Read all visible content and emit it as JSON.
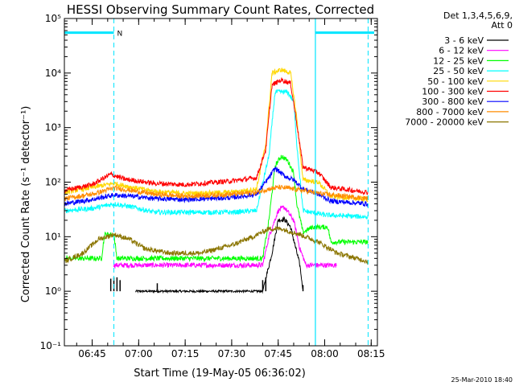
{
  "chart_data": {
    "type": "line",
    "title": "HESSI Observing Summary Count Rates, Corrected",
    "xlabel": "Start Time (19-May-05 06:36:02)",
    "ylabel": "Corrected Count Rate (s⁻¹ detector⁻¹)",
    "y_scale": "log",
    "ylim": [
      0.1,
      100000
    ],
    "xlim": [
      "06:36:02",
      "08:17:00"
    ],
    "x_ticks": [
      "06:45",
      "07:00",
      "07:15",
      "07:30",
      "07:45",
      "08:00",
      "08:15"
    ],
    "y_ticks": [
      "10⁻¹",
      "10⁰",
      "10¹",
      "10²",
      "10³",
      "10⁴",
      "10⁵"
    ],
    "legend_header": [
      "Det 1,3,4,5,6,9,",
      "Att 0"
    ],
    "legend_position": "right",
    "timestamp": "25-Mar-2010 18:40",
    "flag_label": "N",
    "series": [
      {
        "name": "3 - 6 keV",
        "color": "#000000",
        "points": [
          [
            "06:59",
            1
          ],
          [
            "07:27",
            1
          ],
          [
            "07:40",
            1
          ],
          [
            "07:43",
            5
          ],
          [
            "07:45",
            20
          ],
          [
            "07:47",
            21
          ],
          [
            "07:49",
            15
          ],
          [
            "07:52",
            3
          ],
          [
            "07:53",
            1
          ]
        ]
      },
      {
        "name": "6 - 12 keV",
        "color": "#ff00ff",
        "points": [
          [
            "06:52",
            3
          ],
          [
            "07:00",
            3
          ],
          [
            "07:20",
            3
          ],
          [
            "07:40",
            3
          ],
          [
            "07:42",
            10
          ],
          [
            "07:45",
            30
          ],
          [
            "07:47",
            35
          ],
          [
            "07:50",
            20
          ],
          [
            "07:52",
            6
          ],
          [
            "07:54",
            3
          ],
          [
            "08:04",
            3
          ]
        ]
      },
      {
        "name": "12 - 25 keV",
        "color": "#00ff00",
        "points": [
          [
            "06:36",
            4
          ],
          [
            "06:45",
            4
          ],
          [
            "06:48",
            4
          ],
          [
            "06:49",
            11
          ],
          [
            "06:52",
            11
          ],
          [
            "06:53",
            4
          ],
          [
            "07:00",
            4
          ],
          [
            "07:20",
            4
          ],
          [
            "07:40",
            4
          ],
          [
            "07:42",
            20
          ],
          [
            "07:44",
            200
          ],
          [
            "07:46",
            300
          ],
          [
            "07:48",
            250
          ],
          [
            "07:50",
            150
          ],
          [
            "07:51",
            40
          ],
          [
            "07:53",
            12
          ],
          [
            "07:56",
            15
          ],
          [
            "08:01",
            15
          ],
          [
            "08:02",
            8
          ],
          [
            "08:14",
            8
          ]
        ]
      },
      {
        "name": "25 - 50 keV",
        "color": "#00ffff",
        "points": [
          [
            "06:36",
            30
          ],
          [
            "06:45",
            33
          ],
          [
            "06:52",
            40
          ],
          [
            "06:58",
            35
          ],
          [
            "07:05",
            28
          ],
          [
            "07:15",
            28
          ],
          [
            "07:30",
            28
          ],
          [
            "07:38",
            30
          ],
          [
            "07:42",
            300
          ],
          [
            "07:44",
            4500
          ],
          [
            "07:48",
            4500
          ],
          [
            "07:50",
            3000
          ],
          [
            "07:51",
            500
          ],
          [
            "07:53",
            30
          ],
          [
            "08:00",
            25
          ],
          [
            "08:14",
            23
          ]
        ]
      },
      {
        "name": "50 - 100 keV",
        "color": "#ffd700",
        "points": [
          [
            "06:36",
            65
          ],
          [
            "06:45",
            80
          ],
          [
            "06:52",
            95
          ],
          [
            "06:58",
            80
          ],
          [
            "07:05",
            68
          ],
          [
            "07:15",
            62
          ],
          [
            "07:30",
            65
          ],
          [
            "07:38",
            75
          ],
          [
            "07:41",
            500
          ],
          [
            "07:43",
            10000
          ],
          [
            "07:46",
            11500
          ],
          [
            "07:49",
            10000
          ],
          [
            "07:51",
            1500
          ],
          [
            "07:53",
            110
          ],
          [
            "07:58",
            100
          ],
          [
            "08:02",
            55
          ],
          [
            "08:14",
            48
          ]
        ]
      },
      {
        "name": "100 - 300 keV",
        "color": "#ff0000",
        "points": [
          [
            "06:36",
            70
          ],
          [
            "06:45",
            90
          ],
          [
            "06:51",
            140
          ],
          [
            "06:55",
            115
          ],
          [
            "07:05",
            95
          ],
          [
            "07:15",
            90
          ],
          [
            "07:30",
            105
          ],
          [
            "07:38",
            120
          ],
          [
            "07:41",
            400
          ],
          [
            "07:43",
            6000
          ],
          [
            "07:46",
            7500
          ],
          [
            "07:49",
            6500
          ],
          [
            "07:51",
            1200
          ],
          [
            "07:53",
            190
          ],
          [
            "07:58",
            150
          ],
          [
            "08:02",
            80
          ],
          [
            "08:14",
            65
          ]
        ]
      },
      {
        "name": "300 - 800 keV",
        "color": "#0000ff",
        "points": [
          [
            "06:36",
            40
          ],
          [
            "06:45",
            48
          ],
          [
            "06:52",
            58
          ],
          [
            "06:58",
            55
          ],
          [
            "07:05",
            50
          ],
          [
            "07:15",
            48
          ],
          [
            "07:30",
            52
          ],
          [
            "07:38",
            60
          ],
          [
            "07:42",
            120
          ],
          [
            "07:44",
            180
          ],
          [
            "07:47",
            130
          ],
          [
            "07:50",
            110
          ],
          [
            "07:53",
            75
          ],
          [
            "07:58",
            60
          ],
          [
            "08:02",
            45
          ],
          [
            "08:14",
            40
          ]
        ]
      },
      {
        "name": "800 - 7000 keV",
        "color": "#ff8c00",
        "points": [
          [
            "06:36",
            50
          ],
          [
            "06:45",
            60
          ],
          [
            "06:52",
            78
          ],
          [
            "06:58",
            70
          ],
          [
            "07:05",
            60
          ],
          [
            "07:15",
            55
          ],
          [
            "07:30",
            60
          ],
          [
            "07:38",
            65
          ],
          [
            "07:42",
            75
          ],
          [
            "07:45",
            80
          ],
          [
            "07:48",
            78
          ],
          [
            "07:53",
            70
          ],
          [
            "08:00",
            60
          ],
          [
            "08:14",
            50
          ]
        ]
      },
      {
        "name": "7000 - 20000 keV",
        "color": "#8b7500",
        "points": [
          [
            "06:36",
            3.5
          ],
          [
            "06:42",
            5
          ],
          [
            "06:47",
            9
          ],
          [
            "06:52",
            11
          ],
          [
            "06:57",
            9
          ],
          [
            "07:02",
            6
          ],
          [
            "07:10",
            5
          ],
          [
            "07:20",
            5
          ],
          [
            "07:30",
            7
          ],
          [
            "07:37",
            10
          ],
          [
            "07:42",
            14
          ],
          [
            "07:46",
            14
          ],
          [
            "07:52",
            11
          ],
          [
            "07:58",
            8
          ],
          [
            "08:04",
            5
          ],
          [
            "08:14",
            3.5
          ]
        ]
      }
    ]
  }
}
